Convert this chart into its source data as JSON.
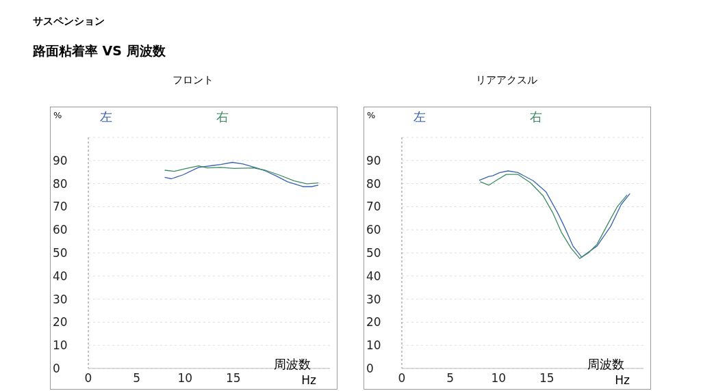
{
  "chart_data": [
    {
      "type": "line",
      "title": "サスペンション",
      "subtitle": "路面粘着率 VS 周波数",
      "xlabel": "周波数",
      "ylabel": "%",
      "annotations": [
        "Hz",
        "フロント"
      ],
      "legend": "top",
      "grid": "y",
      "marker": "none",
      "line_style": "solid",
      "xlim": [
        0,
        25
      ],
      "xticks": [
        0,
        5,
        10,
        15
      ],
      "ylim": [
        0,
        100
      ],
      "yticks": [
        0,
        10,
        20,
        30,
        40,
        50,
        60,
        70,
        80,
        90
      ],
      "series": [
        {
          "name": "左",
          "color": "#3a62b0",
          "x": [
            7.9,
            8.6,
            9.8,
            11.4,
            12.8,
            13.7,
            14.9,
            16.0,
            17.4,
            18.3,
            19.4,
            20.6,
            22.2,
            23.1,
            23.8
          ],
          "values": [
            82.7,
            82.1,
            83.8,
            87.0,
            87.8,
            88.3,
            89.2,
            88.5,
            86.8,
            85.5,
            83.4,
            80.8,
            78.7,
            78.7,
            79.3
          ]
        },
        {
          "name": "右",
          "color": "#3b8a5e",
          "x": [
            7.9,
            8.9,
            10.0,
            11.4,
            12.3,
            13.7,
            15.1,
            17.1,
            18.3,
            19.7,
            21.3,
            22.6,
            23.8
          ],
          "values": [
            85.8,
            85.3,
            86.4,
            87.7,
            86.8,
            87.0,
            86.6,
            86.8,
            85.8,
            83.8,
            81.2,
            79.9,
            80.3
          ]
        }
      ]
    },
    {
      "type": "line",
      "xlabel": "周波数",
      "ylabel": "%",
      "annotations": [
        "Hz",
        "リアアクスル"
      ],
      "legend": "top",
      "grid": "y",
      "marker": "none",
      "line_style": "solid",
      "xlim": [
        0,
        25
      ],
      "xticks": [
        0,
        5,
        10,
        15
      ],
      "ylim": [
        0,
        100
      ],
      "yticks": [
        0,
        10,
        20,
        30,
        40,
        50,
        60,
        70,
        80,
        90
      ],
      "series": [
        {
          "name": "左",
          "color": "#3a62b0",
          "x": [
            8.0,
            9.0,
            9.4,
            10.1,
            11.0,
            12.0,
            13.6,
            14.9,
            16.1,
            16.8,
            17.7,
            18.6,
            20.2,
            21.6,
            22.7,
            23.6
          ],
          "values": [
            81.4,
            83.1,
            83.4,
            84.7,
            85.5,
            84.8,
            81.2,
            76.5,
            67.5,
            61.5,
            53.0,
            48.2,
            53.0,
            61.5,
            71.0,
            75.7
          ]
        },
        {
          "name": "右",
          "color": "#3b8a5e",
          "x": [
            8.1,
            9.0,
            9.7,
            10.8,
            12.0,
            13.3,
            14.6,
            15.6,
            16.5,
            17.5,
            18.4,
            19.3,
            20.2,
            21.4,
            22.3,
            23.3
          ],
          "values": [
            80.8,
            79.3,
            81.2,
            84.0,
            84.0,
            80.4,
            74.8,
            67.5,
            59.0,
            52.1,
            47.6,
            50.0,
            53.8,
            63.2,
            70.1,
            75.1
          ]
        }
      ]
    }
  ]
}
